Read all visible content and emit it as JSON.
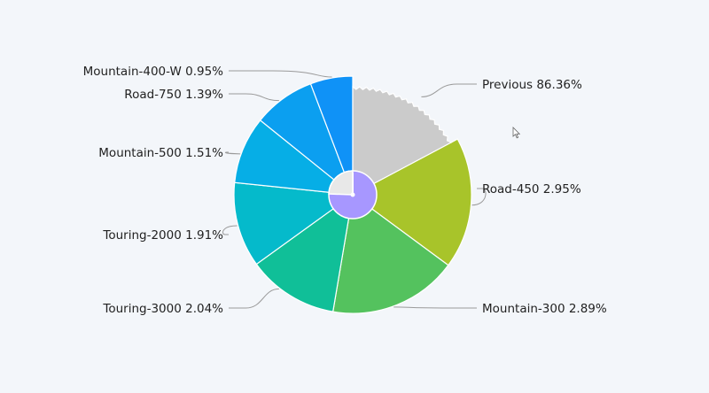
{
  "chart_data": {
    "type": "pie",
    "title": "",
    "slices": [
      {
        "label": "Road-450 2.95%",
        "name": "Road-450",
        "value": 2.95,
        "color": "#a8c42a"
      },
      {
        "label": "Mountain-300 2.89%",
        "name": "Mountain-300",
        "value": 2.89,
        "color": "#54c25e"
      },
      {
        "label": "Touring-3000 2.04%",
        "name": "Touring-3000",
        "value": 2.04,
        "color": "#10bf98"
      },
      {
        "label": "Touring-2000 1.91%",
        "name": "Touring-2000",
        "value": 1.91,
        "color": "#05bacb"
      },
      {
        "label": "Mountain-500 1.51%",
        "name": "Mountain-500",
        "value": 1.51,
        "color": "#06aee6"
      },
      {
        "label": "Road-750 1.39%",
        "name": "Road-750",
        "value": 1.39,
        "color": "#0b9ff0"
      },
      {
        "label": "Mountain-400-W 0.95%",
        "name": "Mountain-400-W",
        "value": 0.95,
        "color": "#0f92f7"
      },
      {
        "label": "Previous 86.36%",
        "name": "Previous",
        "value": 86.36,
        "color": "#cbcbcb"
      }
    ],
    "inner_pie": {
      "colors": {
        "main": "#a797ff",
        "previous": "#e8e8e8"
      }
    },
    "legend": "none"
  }
}
